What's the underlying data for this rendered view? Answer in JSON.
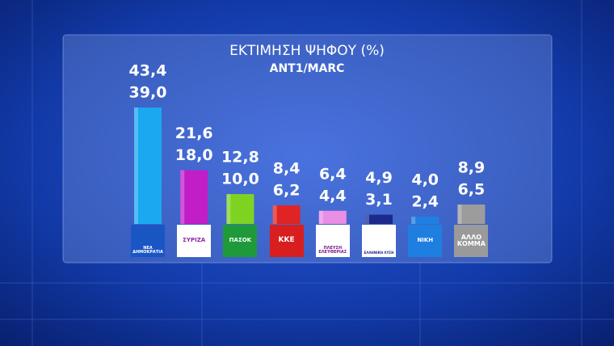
{
  "chart_data": {
    "type": "bar",
    "title": "ΕΚΤΙΜΗΣΗ ΨΗΦΟΥ (%)",
    "subtitle": "ANT1/MARC",
    "categories": [
      "ΝΕΑ ΔΗΜΟΚΡΑΤΙΑ",
      "ΣΥΡΙΖΑ",
      "ΠΑΣΟΚ",
      "ΚΚΕ",
      "ΠΛΕΥΣΗ ΕΛΕΥΘΕΡΙΑΣ",
      "ΕΛΛΗΝΙΚΗ ΛΥΣΗ",
      "ΝΙΚΗ",
      "ΑΛΛΟ ΚΟΜΜΑ"
    ],
    "colors": [
      "#1aa8f0",
      "#c21ec8",
      "#7ed321",
      "#e02424",
      "#e88ee4",
      "#1c2a8c",
      "#1e80e2",
      "#9c9c9c"
    ],
    "series": [
      {
        "values": [
          43.4,
          21.6,
          12.8,
          8.4,
          6.4,
          4.9,
          4.0,
          8.9
        ],
        "value_labels": [
          "43,4",
          "21,6",
          "12,8",
          "8,4",
          "6,4",
          "4,9",
          "4,0",
          "8,9"
        ]
      },
      {
        "values": [
          39.0,
          18.0,
          10.0,
          6.2,
          4.4,
          3.1,
          2.4,
          6.5
        ],
        "value_labels": [
          "39,0",
          "18,0",
          "10,0",
          "6,2",
          "4,4",
          "3,1",
          "2,4",
          "6,5"
        ]
      }
    ]
  }
}
